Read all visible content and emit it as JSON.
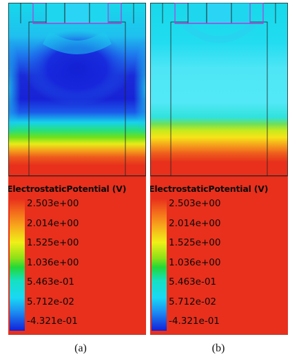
{
  "panels": [
    {
      "id": "a",
      "caption": "(a)",
      "colorbar": {
        "title": "ElectrostaticPotential (V)",
        "ticks": [
          "2.503e+00",
          "2.014e+00",
          "1.525e+00",
          "1.036e+00",
          "5.463e-01",
          "5.712e-02",
          "-4.321e-01"
        ]
      }
    },
    {
      "id": "b",
      "caption": "(b)",
      "colorbar": {
        "title": "ElectrostaticPotential (V)",
        "ticks": [
          "2.503e+00",
          "2.014e+00",
          "1.525e+00",
          "1.036e+00",
          "5.463e-01",
          "5.712e-02",
          "-4.321e-01"
        ]
      }
    }
  ],
  "colors": {
    "field_max_red": "#e8301c",
    "field_min_blue": "#1420d8",
    "cyan": "#13dcef",
    "contact_fill": "#2ad4f4",
    "contact_outline": "#b03cd8",
    "mesh_outline": "#222222"
  }
}
